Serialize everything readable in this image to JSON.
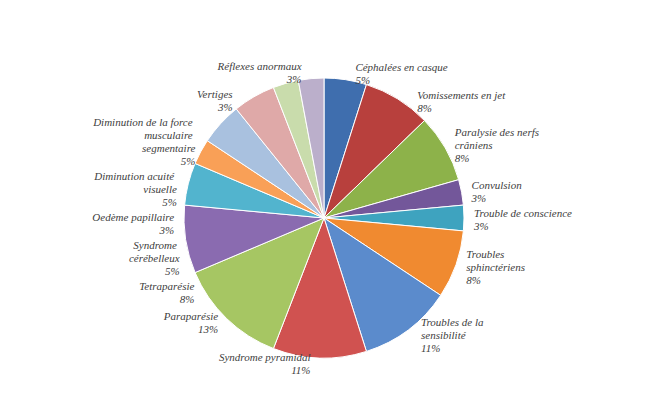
{
  "chart_data": {
    "type": "pie",
    "categories": [
      "Céphalées en casque",
      "Vomissements en jet",
      "Paralysie des nerfs crâniens",
      "Convulsion",
      "Trouble de conscience",
      "Troubles sphinctériens",
      "Troubles de la sensibilité",
      "Syndrome pyramidal",
      "Paraparésie",
      "Tetraparésie",
      "Syndrome cérébelleux",
      "Oedème papillaire",
      "Diminution acuité visuelle",
      "Diminution de la force musculaire segmentaire",
      "Vertiges",
      "Réflexes anormaux"
    ],
    "values": [
      5,
      8,
      8,
      3,
      3,
      8,
      11,
      11,
      13,
      8,
      5,
      3,
      5,
      5,
      3,
      3
    ],
    "value_labels": [
      "5%",
      "8%",
      "8%",
      "3%",
      "3%",
      "8%",
      "11%",
      "11%",
      "13%",
      "8%",
      "5%",
      "3%",
      "5%",
      "5%",
      "3%",
      "3%"
    ],
    "colors": [
      "#3f6eae",
      "#b8403d",
      "#8db24a",
      "#73579a",
      "#3ea3bf",
      "#f08a30",
      "#5b8bcc",
      "#d05250",
      "#a6c663",
      "#8a6bb0",
      "#52b4ce",
      "#f9a057",
      "#a9c1df",
      "#dfa9a8",
      "#c9dcac",
      "#bbafcb"
    ],
    "data_labels": true
  }
}
